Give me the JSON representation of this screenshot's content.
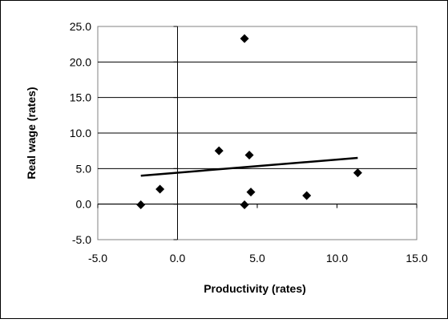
{
  "chart_data": {
    "type": "scatter",
    "title": "",
    "xlabel": "Productivity (rates)",
    "ylabel": "Real wage (rates)",
    "xlim": [
      -5.0,
      15.0
    ],
    "ylim": [
      -5.0,
      25.0
    ],
    "x_ticks": [
      -5.0,
      0.0,
      5.0,
      10.0,
      15.0
    ],
    "y_ticks": [
      -5.0,
      0.0,
      5.0,
      10.0,
      15.0,
      20.0,
      25.0
    ],
    "x_tick_labels": [
      "-5.0",
      "0.0",
      "5.0",
      "10.0",
      "15.0"
    ],
    "y_tick_labels": [
      "-5.0",
      "0.0",
      "5.0",
      "10.0",
      "15.0",
      "20.0",
      "25.0"
    ],
    "grid": "horizontal",
    "legend": "none",
    "series": [
      {
        "marker": "diamond",
        "color": "#000000",
        "points": [
          {
            "x": -2.3,
            "y": -0.1
          },
          {
            "x": -1.1,
            "y": 2.1
          },
          {
            "x": 2.6,
            "y": 7.5
          },
          {
            "x": 4.2,
            "y": 23.3
          },
          {
            "x": 4.2,
            "y": -0.1
          },
          {
            "x": 4.5,
            "y": 6.9
          },
          {
            "x": 4.6,
            "y": 1.7
          },
          {
            "x": 8.1,
            "y": 1.2
          },
          {
            "x": 11.3,
            "y": 4.4
          }
        ]
      }
    ],
    "trendline": {
      "color": "#000000",
      "points": [
        {
          "x": -2.3,
          "y": 4.0
        },
        {
          "x": 11.3,
          "y": 6.5
        }
      ]
    }
  }
}
